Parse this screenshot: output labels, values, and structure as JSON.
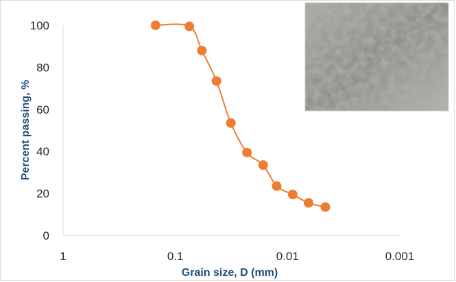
{
  "chart_data": {
    "type": "scatter",
    "title": "",
    "xlabel": "Grain size, D (mm)",
    "ylabel": "Percent passing, %",
    "x_scale": "log",
    "x_reversed": true,
    "xlim": [
      1,
      0.001
    ],
    "ylim": [
      0,
      100
    ],
    "x_ticks": [
      1,
      0.1,
      0.01,
      0.001
    ],
    "x_tick_labels": [
      "1",
      "0.1",
      "0.01",
      "0.001"
    ],
    "y_ticks": [
      0,
      20,
      40,
      60,
      80,
      100
    ],
    "y_tick_labels": [
      "0",
      "20",
      "40",
      "60",
      "80",
      "100"
    ],
    "grid": false,
    "legend": "none",
    "series": [
      {
        "color": "#ed7d31",
        "marker": "circle",
        "line": "smooth",
        "points": [
          {
            "x": 0.15,
            "y": 100
          },
          {
            "x": 0.075,
            "y": 99.5
          },
          {
            "x": 0.058,
            "y": 88
          },
          {
            "x": 0.043,
            "y": 73.5
          },
          {
            "x": 0.032,
            "y": 53.5
          },
          {
            "x": 0.023,
            "y": 39.5
          },
          {
            "x": 0.0165,
            "y": 33.5
          },
          {
            "x": 0.0125,
            "y": 23.5
          },
          {
            "x": 0.009,
            "y": 19.5
          },
          {
            "x": 0.0065,
            "y": 15.5
          },
          {
            "x": 0.0046,
            "y": 13.5
          }
        ]
      }
    ],
    "inset_image": "soil-sample-photo"
  }
}
